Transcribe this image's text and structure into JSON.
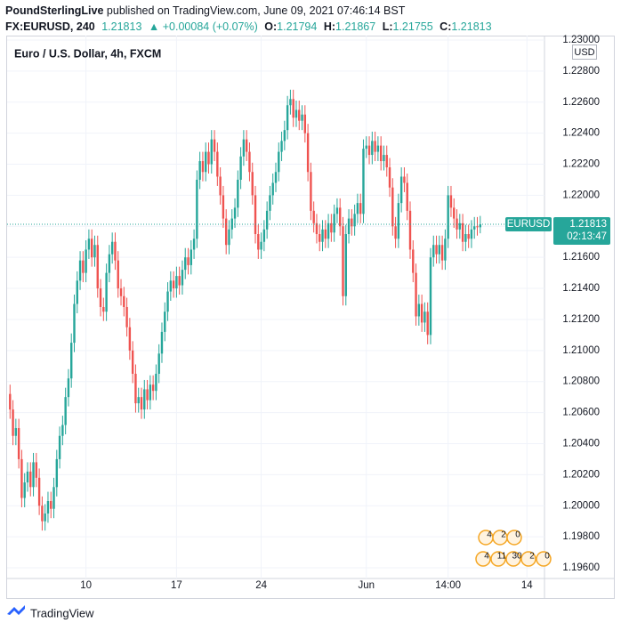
{
  "header": {
    "publisher": "PoundSterlingLive",
    "published": "published on TradingView.com, June 09, 2021 07:46:14 BST",
    "symbol": "FX:EURUSD, 240",
    "change": "▲ +0.00084 (+0.07%)",
    "o": "O:",
    "h": "H:",
    "l": "L:",
    "c": "C:"
  },
  "footer": {
    "brand": "TradingView"
  },
  "chart_data": {
    "type": "candlestick",
    "title": "Euro / U.S. Dollar, 4h, FXCM",
    "currency": "USD",
    "symbol_label": "EURUSD",
    "countdown": "02:13:47",
    "up_color": "#26a69a",
    "down_color": "#ef5350",
    "grid": true,
    "ylim": [
      1.196,
      1.23
    ],
    "yticks": [
      {
        "value": 1.196,
        "label": "1.19600"
      },
      {
        "value": 1.198,
        "label": "1.19800"
      },
      {
        "value": 1.2,
        "label": "1.20000"
      },
      {
        "value": 1.202,
        "label": "1.20200"
      },
      {
        "value": 1.204,
        "label": "1.20400"
      },
      {
        "value": 1.206,
        "label": "1.20600"
      },
      {
        "value": 1.208,
        "label": "1.20800"
      },
      {
        "value": 1.21,
        "label": "1.21000"
      },
      {
        "value": 1.212,
        "label": "1.21200"
      },
      {
        "value": 1.214,
        "label": "1.21400"
      },
      {
        "value": 1.216,
        "label": "1.21600"
      },
      {
        "value": 1.218,
        "label": "1.21800"
      },
      {
        "value": 1.22,
        "label": "1.22000"
      },
      {
        "value": 1.222,
        "label": "1.22200"
      },
      {
        "value": 1.224,
        "label": "1.22400"
      },
      {
        "value": 1.226,
        "label": "1.22600"
      },
      {
        "value": 1.228,
        "label": "1.22800"
      },
      {
        "value": 1.23,
        "label": "1.23000"
      }
    ],
    "xlim": [
      -1,
      183
    ],
    "xticks": [
      {
        "value": 26,
        "label": "10"
      },
      {
        "value": 57,
        "label": "17"
      },
      {
        "value": 86,
        "label": "24"
      },
      {
        "value": 122,
        "label": "Jun"
      },
      {
        "value": 150,
        "label": "14:00"
      },
      {
        "value": 177,
        "label": "14"
      }
    ],
    "open": [
      1.2072,
      1.2062,
      1.2045,
      1.205,
      1.203,
      1.2005,
      1.2015,
      1.2022,
      1.2012,
      1.2028,
      1.2018,
      1.2,
      1.199,
      1.1995,
      1.2003,
      1.1998,
      1.2012,
      1.203,
      1.2045,
      1.2052,
      1.207,
      1.2082,
      1.2105,
      1.213,
      1.2145,
      1.2158,
      1.215,
      1.2165,
      1.2172,
      1.216,
      1.2168,
      1.214,
      1.2128,
      1.2125,
      1.215,
      1.2162,
      1.217,
      1.2158,
      1.214,
      1.2135,
      1.2128,
      1.2115,
      1.21,
      1.2085,
      1.2066,
      1.207,
      1.2062,
      1.2075,
      1.2068,
      1.2078,
      1.2074,
      1.2085,
      1.2098,
      1.2112,
      1.2125,
      1.2138,
      1.2145,
      1.214,
      1.2148,
      1.2142,
      1.2152,
      1.216,
      1.2155,
      1.2165,
      1.2172,
      1.221,
      1.2222,
      1.2215,
      1.2228,
      1.222,
      1.2236,
      1.2228,
      1.2212,
      1.22,
      1.2185,
      1.2168,
      1.2178,
      1.2185,
      1.2192,
      1.221,
      1.2225,
      1.2236,
      1.2228,
      1.2215,
      1.22,
      1.2175,
      1.2165,
      1.217,
      1.2178,
      1.219,
      1.22,
      1.2208,
      1.2215,
      1.2228,
      1.2235,
      1.2242,
      1.2258,
      1.2262,
      1.225,
      1.2255,
      1.2248,
      1.2252,
      1.224,
      1.2215,
      1.219,
      1.2182,
      1.2175,
      1.217,
      1.2178,
      1.2172,
      1.2182,
      1.2176,
      1.2188,
      1.2192,
      1.218,
      1.2135,
      1.2175,
      1.2185,
      1.218,
      1.2188,
      1.2195,
      1.2188,
      1.223,
      1.2232,
      1.2226,
      1.2235,
      1.2228,
      1.2232,
      1.2222,
      1.2226,
      1.2218,
      1.2205,
      1.218,
      1.2172,
      1.2195,
      1.2212,
      1.2208,
      1.219,
      1.2165,
      1.215,
      1.2122,
      1.213,
      1.2118,
      1.2125,
      1.211,
      1.216,
      1.2168,
      1.2162,
      1.2168,
      1.2158,
      1.2172,
      1.22,
      1.2192,
      1.2185,
      1.2178,
      1.2182,
      1.217,
      1.2175,
      1.2172,
      1.2178,
      1.218,
      1.21794
    ],
    "high": [
      1.2078,
      1.2068,
      1.2056,
      1.2056,
      1.2036,
      1.2021,
      1.2028,
      1.2028,
      1.2034,
      1.2034,
      1.2024,
      1.2006,
      1.2001,
      1.2009,
      1.2009,
      1.2018,
      1.2036,
      1.2051,
      1.2058,
      1.2076,
      1.2088,
      1.2111,
      1.2136,
      1.2151,
      1.2164,
      1.2164,
      1.2171,
      1.2178,
      1.2178,
      1.2174,
      1.2174,
      1.2146,
      1.2134,
      1.2156,
      1.2168,
      1.2176,
      1.2176,
      1.2164,
      1.2146,
      1.2141,
      1.2134,
      1.2121,
      1.2106,
      1.2091,
      1.2076,
      1.2076,
      1.2081,
      1.2081,
      1.2084,
      1.2084,
      1.2091,
      1.2104,
      1.2118,
      1.2131,
      1.2144,
      1.2151,
      1.2151,
      1.2154,
      1.2154,
      1.2158,
      1.2166,
      1.2166,
      1.2171,
      1.2178,
      1.2216,
      1.2228,
      1.2228,
      1.2234,
      1.2234,
      1.2242,
      1.2242,
      1.2234,
      1.2218,
      1.2206,
      1.2191,
      1.2184,
      1.2191,
      1.2198,
      1.2216,
      1.2231,
      1.2242,
      1.2242,
      1.2234,
      1.2221,
      1.2206,
      1.2181,
      1.2176,
      1.2184,
      1.2196,
      1.2206,
      1.2214,
      1.2221,
      1.2234,
      1.2241,
      1.2248,
      1.2264,
      1.2268,
      1.2268,
      1.2261,
      1.2261,
      1.2258,
      1.2258,
      1.2246,
      1.2221,
      1.2196,
      1.2188,
      1.2181,
      1.2184,
      1.2184,
      1.2188,
      1.2188,
      1.2194,
      1.2198,
      1.2198,
      1.2186,
      1.2181,
      1.2191,
      1.2191,
      1.2194,
      1.2201,
      1.2201,
      1.2236,
      1.2238,
      1.2238,
      1.2241,
      1.2241,
      1.2238,
      1.2238,
      1.2232,
      1.2232,
      1.2224,
      1.2211,
      1.2186,
      1.2201,
      1.2218,
      1.2218,
      1.2214,
      1.2196,
      1.2171,
      1.2156,
      1.2136,
      1.2136,
      1.2131,
      1.2131,
      1.2166,
      1.2174,
      1.2174,
      1.2174,
      1.2174,
      1.2178,
      1.2206,
      1.2206,
      1.2198,
      1.2191,
      1.2188,
      1.2188,
      1.2181,
      1.2181,
      1.2184,
      1.2186,
      1.2186,
      1.21867
    ],
    "low": [
      1.2056,
      1.2039,
      1.2039,
      1.2024,
      1.1999,
      1.1999,
      1.2009,
      1.2006,
      1.2006,
      1.2012,
      1.1994,
      1.1984,
      1.1984,
      1.1989,
      1.1992,
      1.1992,
      1.2006,
      1.2024,
      1.2039,
      1.2046,
      1.2064,
      1.2076,
      1.2099,
      1.2124,
      1.2139,
      1.2144,
      1.2144,
      1.2159,
      1.2154,
      1.2154,
      1.2134,
      1.2122,
      1.2119,
      1.2119,
      1.2144,
      1.2156,
      1.2152,
      1.2134,
      1.2129,
      1.2122,
      1.2109,
      1.2094,
      1.2079,
      1.206,
      1.206,
      1.2056,
      1.2056,
      1.2062,
      1.2062,
      1.2068,
      1.2068,
      1.2079,
      1.2092,
      1.2106,
      1.2119,
      1.2132,
      1.2134,
      1.2134,
      1.2136,
      1.2136,
      1.2146,
      1.2149,
      1.2149,
      1.2159,
      1.2166,
      1.2204,
      1.2209,
      1.2209,
      1.2214,
      1.2214,
      1.2222,
      1.2206,
      1.2194,
      1.2179,
      1.2162,
      1.2162,
      1.2172,
      1.2179,
      1.2186,
      1.2204,
      1.2219,
      1.2222,
      1.2209,
      1.2194,
      1.2169,
      1.2159,
      1.2159,
      1.2164,
      1.2172,
      1.2184,
      1.2194,
      1.2202,
      1.2209,
      1.2222,
      1.2229,
      1.2236,
      1.2252,
      1.2244,
      1.2244,
      1.2242,
      1.2242,
      1.2234,
      1.2209,
      1.2184,
      1.2176,
      1.2169,
      1.2164,
      1.2164,
      1.2166,
      1.2166,
      1.217,
      1.217,
      1.2182,
      1.2174,
      1.2129,
      1.2129,
      1.2169,
      1.2174,
      1.2174,
      1.2182,
      1.2182,
      1.2182,
      1.2224,
      1.222,
      1.222,
      1.2222,
      1.2222,
      1.2216,
      1.2216,
      1.2212,
      1.2199,
      1.2174,
      1.2166,
      1.2166,
      1.2189,
      1.2202,
      1.2184,
      1.2159,
      1.2144,
      1.2116,
      1.2116,
      1.2112,
      1.2112,
      1.2104,
      1.2104,
      1.2154,
      1.2156,
      1.2156,
      1.2152,
      1.2152,
      1.2166,
      1.2186,
      1.2179,
      1.2172,
      1.2172,
      1.2164,
      1.2164,
      1.2166,
      1.2166,
      1.2172,
      1.2174,
      1.21755
    ],
    "close": [
      1.2062,
      1.2045,
      1.205,
      1.203,
      1.2005,
      1.2015,
      1.2022,
      1.2012,
      1.2028,
      1.2018,
      1.2,
      1.199,
      1.1995,
      1.2003,
      1.1998,
      1.2012,
      1.203,
      1.2045,
      1.2052,
      1.207,
      1.2082,
      1.2105,
      1.213,
      1.2145,
      1.2158,
      1.215,
      1.2165,
      1.2172,
      1.216,
      1.2168,
      1.214,
      1.2128,
      1.2125,
      1.215,
      1.2162,
      1.217,
      1.2158,
      1.214,
      1.2135,
      1.2128,
      1.2115,
      1.21,
      1.2085,
      1.2066,
      1.207,
      1.2062,
      1.2075,
      1.2068,
      1.2078,
      1.2074,
      1.2085,
      1.2098,
      1.2112,
      1.2125,
      1.2138,
      1.2145,
      1.214,
      1.2148,
      1.2142,
      1.2152,
      1.216,
      1.2155,
      1.2165,
      1.2172,
      1.221,
      1.2222,
      1.2215,
      1.2228,
      1.222,
      1.2236,
      1.2228,
      1.2212,
      1.22,
      1.2185,
      1.2168,
      1.2178,
      1.2185,
      1.2192,
      1.221,
      1.2225,
      1.2236,
      1.2228,
      1.2215,
      1.22,
      1.2175,
      1.2165,
      1.217,
      1.2178,
      1.219,
      1.22,
      1.2208,
      1.2215,
      1.2228,
      1.2235,
      1.2242,
      1.2258,
      1.2262,
      1.225,
      1.2255,
      1.2248,
      1.2252,
      1.224,
      1.2215,
      1.219,
      1.2182,
      1.2175,
      1.217,
      1.2178,
      1.2172,
      1.2182,
      1.2176,
      1.2188,
      1.2192,
      1.218,
      1.2135,
      1.2175,
      1.2185,
      1.218,
      1.2188,
      1.2195,
      1.2188,
      1.223,
      1.2232,
      1.2226,
      1.2235,
      1.2228,
      1.2232,
      1.2222,
      1.2226,
      1.2218,
      1.2205,
      1.218,
      1.2172,
      1.2195,
      1.2212,
      1.2208,
      1.219,
      1.2165,
      1.215,
      1.2122,
      1.213,
      1.2118,
      1.2125,
      1.211,
      1.216,
      1.2168,
      1.2162,
      1.2168,
      1.2158,
      1.2172,
      1.22,
      1.2192,
      1.2185,
      1.2178,
      1.2182,
      1.217,
      1.2175,
      1.2172,
      1.2178,
      1.218,
      1.21794,
      1.21813
    ],
    "events": [
      [
        "4",
        "2",
        "0"
      ],
      [
        "4",
        "11",
        "30",
        "2",
        "0"
      ]
    ]
  }
}
